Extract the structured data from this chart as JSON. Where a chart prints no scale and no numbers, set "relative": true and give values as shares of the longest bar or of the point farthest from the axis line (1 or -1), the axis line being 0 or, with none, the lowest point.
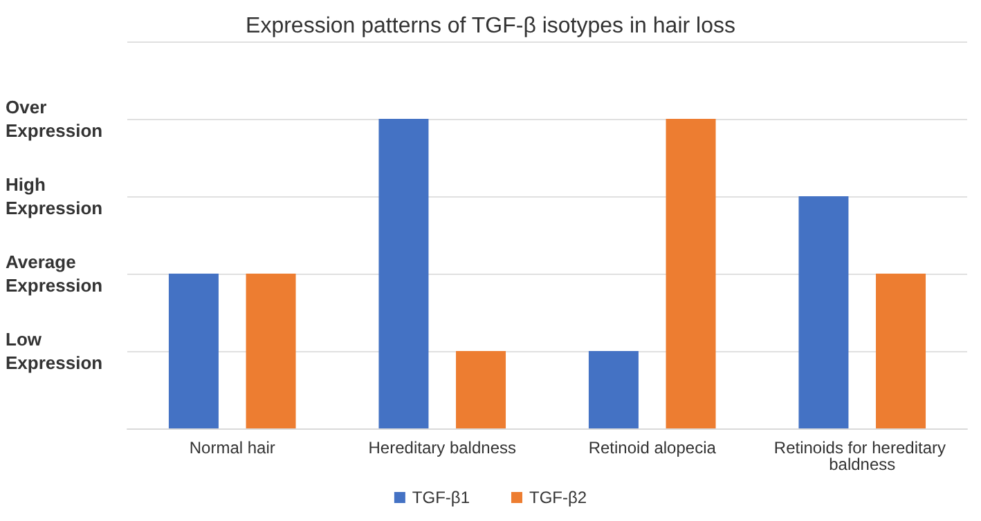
{
  "chart_data": {
    "type": "bar",
    "title": "Expression patterns of TGF-β isotypes in hair loss",
    "categories": [
      "Normal hair",
      "Hereditary baldness",
      "Retinoid alopecia",
      "Retinoids for hereditary baldness"
    ],
    "series": [
      {
        "name": "TGF-β1",
        "color": "#4472c4",
        "values": [
          0.5,
          1,
          0.25,
          0.75
        ]
      },
      {
        "name": "TGF-β2",
        "color": "#ed7d31",
        "values": [
          0.5,
          0.25,
          1,
          0.5
        ]
      }
    ],
    "relative": true,
    "annotations": [
      "Low Expression",
      "Average Expression",
      "High Expression",
      "Over Expression"
    ],
    "grid": "y",
    "legend": "bottom"
  }
}
